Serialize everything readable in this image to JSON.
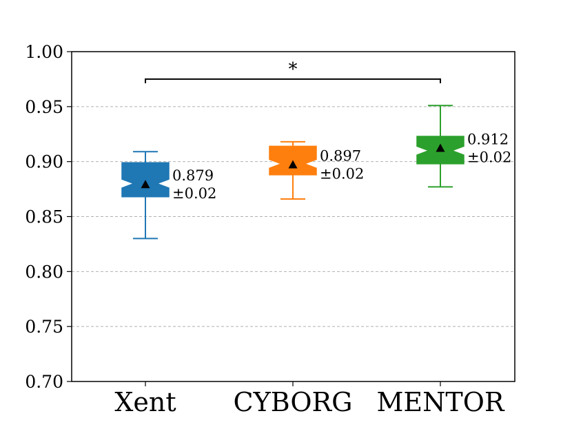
{
  "chart_data": {
    "type": "box",
    "categories": [
      "Xent",
      "CYBORG",
      "MENTOR"
    ],
    "ylim": [
      0.7,
      1.0
    ],
    "yticks": [
      "0.70",
      "0.75",
      "0.80",
      "0.85",
      "0.90",
      "0.95",
      "1.00"
    ],
    "grid": "y-dashed",
    "series": [
      {
        "category": "Xent",
        "color": "#1f77b4",
        "whisker_low": 0.83,
        "q1": 0.868,
        "notch_low": 0.876,
        "median": 0.88,
        "notch_high": 0.884,
        "q3": 0.899,
        "whisker_high": 0.909,
        "mean": 0.879,
        "mean_label": "0.879",
        "std_label": "±0.02"
      },
      {
        "category": "CYBORG",
        "color": "#ff7f0e",
        "whisker_low": 0.866,
        "q1": 0.888,
        "notch_low": 0.894,
        "median": 0.898,
        "notch_high": 0.902,
        "q3": 0.914,
        "whisker_high": 0.918,
        "mean": 0.897,
        "mean_label": "0.897",
        "std_label": "±0.02"
      },
      {
        "category": "MENTOR",
        "color": "#2ca02c",
        "whisker_low": 0.877,
        "q1": 0.898,
        "notch_low": 0.906,
        "median": 0.91,
        "notch_high": 0.914,
        "q3": 0.923,
        "whisker_high": 0.951,
        "mean": 0.912,
        "mean_label": "0.912",
        "std_label": "±0.02"
      }
    ],
    "significance": {
      "from": "Xent",
      "to": "MENTOR",
      "y": 0.975,
      "label": "*"
    }
  }
}
